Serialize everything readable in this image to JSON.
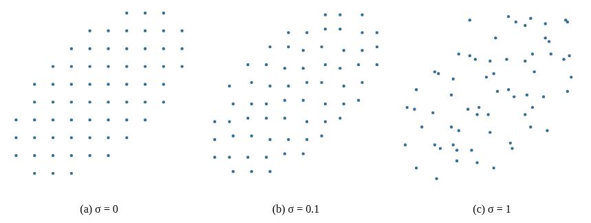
{
  "chart_data": [
    {
      "type": "scatter",
      "title": "(a) σ = 0",
      "color": "#3b6f8e",
      "marker": "circle",
      "grid": false,
      "tick_labels": false,
      "x": [
        6.5,
        5.5,
        4.5,
        3.5,
        7.5,
        6.5,
        5.5,
        4.5,
        3.5,
        6.5,
        5.5,
        4.5,
        3.5,
        2.5,
        7.5,
        6.5,
        5.5,
        4.5,
        5.5,
        4.5,
        3.5,
        2.5,
        8.5,
        7.5,
        6.5,
        5.5,
        4.5,
        5.5,
        4.5,
        3.5,
        2.5,
        1.5,
        8.5,
        7.5,
        6.5,
        5.5,
        4.5,
        3.5,
        2.5,
        1.5,
        8.5,
        7.5,
        6.5,
        3.5,
        2.5,
        1.5,
        9.5,
        8.5,
        7.5,
        6.5,
        3.5,
        2.5,
        1.5,
        0.5,
        9.5,
        8.5,
        7.5,
        2.5,
        1.5,
        0.5,
        9.5,
        8.5,
        1.5,
        0.5
      ],
      "values": [
        3.5,
        4.5,
        5.5,
        6.5,
        3.5,
        4.5,
        5.5,
        6.5,
        7.5,
        2.5,
        3.5,
        4.5,
        5.5,
        6.5,
        4.5,
        5.5,
        6.5,
        7.5,
        2.5,
        3.5,
        4.5,
        5.5,
        4.5,
        5.5,
        6.5,
        7.5,
        8.5,
        1.5,
        2.5,
        3.5,
        4.5,
        5.5,
        5.5,
        6.5,
        7.5,
        8.5,
        1.5,
        2.5,
        3.5,
        4.5,
        6.5,
        7.5,
        8.5,
        1.5,
        2.5,
        3.5,
        6.5,
        7.5,
        8.5,
        9.5,
        0.5,
        1.5,
        2.5,
        3.5,
        7.5,
        8.5,
        9.5,
        0.5,
        1.5,
        2.5,
        8.5,
        9.5,
        0.5,
        1.5
      ]
    },
    {
      "type": "scatter",
      "title": "(b) σ = 0.1",
      "color": "#3b6f8e",
      "marker": "circle",
      "grid": false,
      "tick_labels": false,
      "x": [
        6.6,
        5.4,
        4.6,
        3.4,
        7.4,
        6.6,
        5.6,
        4.4,
        3.6,
        6.4,
        5.6,
        4.4,
        3.6,
        2.4,
        7.6,
        6.4,
        5.4,
        4.6,
        5.6,
        4.4,
        3.4,
        2.6,
        8.4,
        7.6,
        6.6,
        5.4,
        4.6,
        5.4,
        4.6,
        3.4,
        2.6,
        1.4,
        8.6,
        7.4,
        6.4,
        5.6,
        4.4,
        3.6,
        2.4,
        1.6,
        8.4,
        7.6,
        6.6,
        3.4,
        2.6,
        1.4,
        9.4,
        8.6,
        7.4,
        6.6,
        3.6,
        2.4,
        1.6,
        0.6,
        9.4,
        8.6,
        7.4,
        2.6,
        1.4,
        0.6,
        9.4,
        8.6,
        1.6,
        0.6
      ],
      "values": [
        3.4,
        4.6,
        5.4,
        6.6,
        3.6,
        4.4,
        5.6,
        6.4,
        7.6,
        2.6,
        3.4,
        4.6,
        5.4,
        6.6,
        4.4,
        5.6,
        6.4,
        7.6,
        2.4,
        3.6,
        4.4,
        5.6,
        4.6,
        5.4,
        6.6,
        7.4,
        8.4,
        1.6,
        2.4,
        3.6,
        4.4,
        5.4,
        5.6,
        6.4,
        7.6,
        8.4,
        1.6,
        2.4,
        3.6,
        4.4,
        6.6,
        7.4,
        8.6,
        1.4,
        2.6,
        3.4,
        6.6,
        7.4,
        8.6,
        9.4,
        0.6,
        1.4,
        2.6,
        3.4,
        7.6,
        8.4,
        9.4,
        0.6,
        1.4,
        2.4,
        8.4,
        9.4,
        0.6,
        1.4
      ]
    },
    {
      "type": "scatter",
      "title": "(c) σ = 1",
      "color": "#3b6f8e",
      "marker": "circle",
      "grid": false,
      "tick_labels": false,
      "x": [
        7.2,
        4.8,
        5.1,
        2.9,
        8.0,
        5.9,
        6.2,
        3.8,
        4.1,
        7.1,
        4.9,
        5.3,
        2.8,
        3.2,
        6.8,
        7.3,
        4.7,
        5.2,
        6.1,
        3.7,
        4.2,
        1.9,
        9.1,
        6.9,
        7.2,
        4.9,
        3.8,
        6.0,
        3.9,
        4.3,
        1.8,
        2.1,
        7.8,
        8.2,
        5.8,
        6.3,
        5.1,
        2.8,
        3.2,
        0.9,
        9.2,
        6.8,
        7.1,
        2.9,
        3.1,
        0.8,
        9.3,
        7.9,
        8.1,
        5.9,
        4.2,
        1.9,
        2.2,
        0.4,
        8.9,
        9.1,
        6.8,
        3.1,
        0.9,
        1.2,
        9.0,
        7.9,
        2.0,
        0.3
      ],
      "values": [
        4.2,
        3.8,
        6.1,
        5.8,
        2.9,
        5.2,
        4.8,
        7.1,
        6.9,
        3.1,
        2.8,
        5.1,
        4.9,
        7.2,
        3.8,
        6.2,
        5.9,
        8.1,
        1.9,
        4.1,
        3.8,
        6.2,
        5.1,
        4.9,
        7.2,
        6.8,
        9.1,
        2.2,
        1.8,
        4.2,
        3.9,
        6.1,
        4.8,
        7.2,
        6.9,
        9.0,
        0.8,
        3.1,
        2.9,
        5.2,
        7.1,
        6.8,
        9.2,
        2.1,
        1.8,
        4.1,
        5.9,
        8.1,
        7.9,
        9.3,
        1.1,
        2.1,
        1.9,
        4.2,
        6.9,
        9.0,
        8.8,
        1.2,
        0.8,
        3.1,
        9.1,
        8.9,
        0.2,
        2.1
      ]
    }
  ]
}
